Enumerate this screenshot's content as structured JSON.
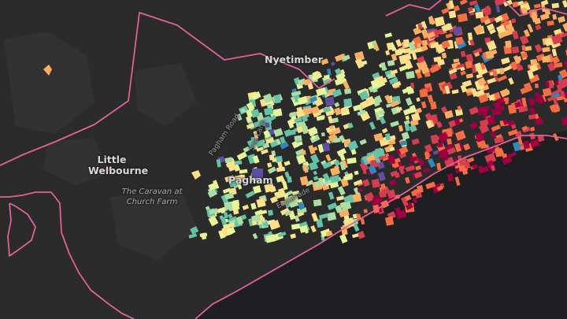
{
  "map": {
    "places": [
      {
        "id": "little-welbourne",
        "lines": [
          "Little",
          "Welbourne"
        ]
      },
      {
        "id": "pagham",
        "lines": [
          "Pagham"
        ]
      },
      {
        "id": "nyetimber",
        "lines": [
          "Nyetimber"
        ]
      }
    ],
    "pois": [
      {
        "id": "caravan-church-farm",
        "lines": [
          "The Caravan at",
          "Church Farm"
        ]
      }
    ],
    "roads": [
      {
        "id": "pagham-road",
        "text": "Pagham Road"
      },
      {
        "id": "sea-lane",
        "text": "Sea Lane"
      },
      {
        "id": "esplanade",
        "text": "Esplanade"
      }
    ],
    "colors": {
      "land": "#2b2b2b",
      "sea": "#1f1f21",
      "boundary": "#e0619a",
      "building_palette": [
        "#9e0142",
        "#d53e4f",
        "#f46d43",
        "#fdae61",
        "#fee08b",
        "#e6f598",
        "#abdda4",
        "#66c2a5",
        "#3288bd",
        "#5e4fa2"
      ]
    }
  }
}
